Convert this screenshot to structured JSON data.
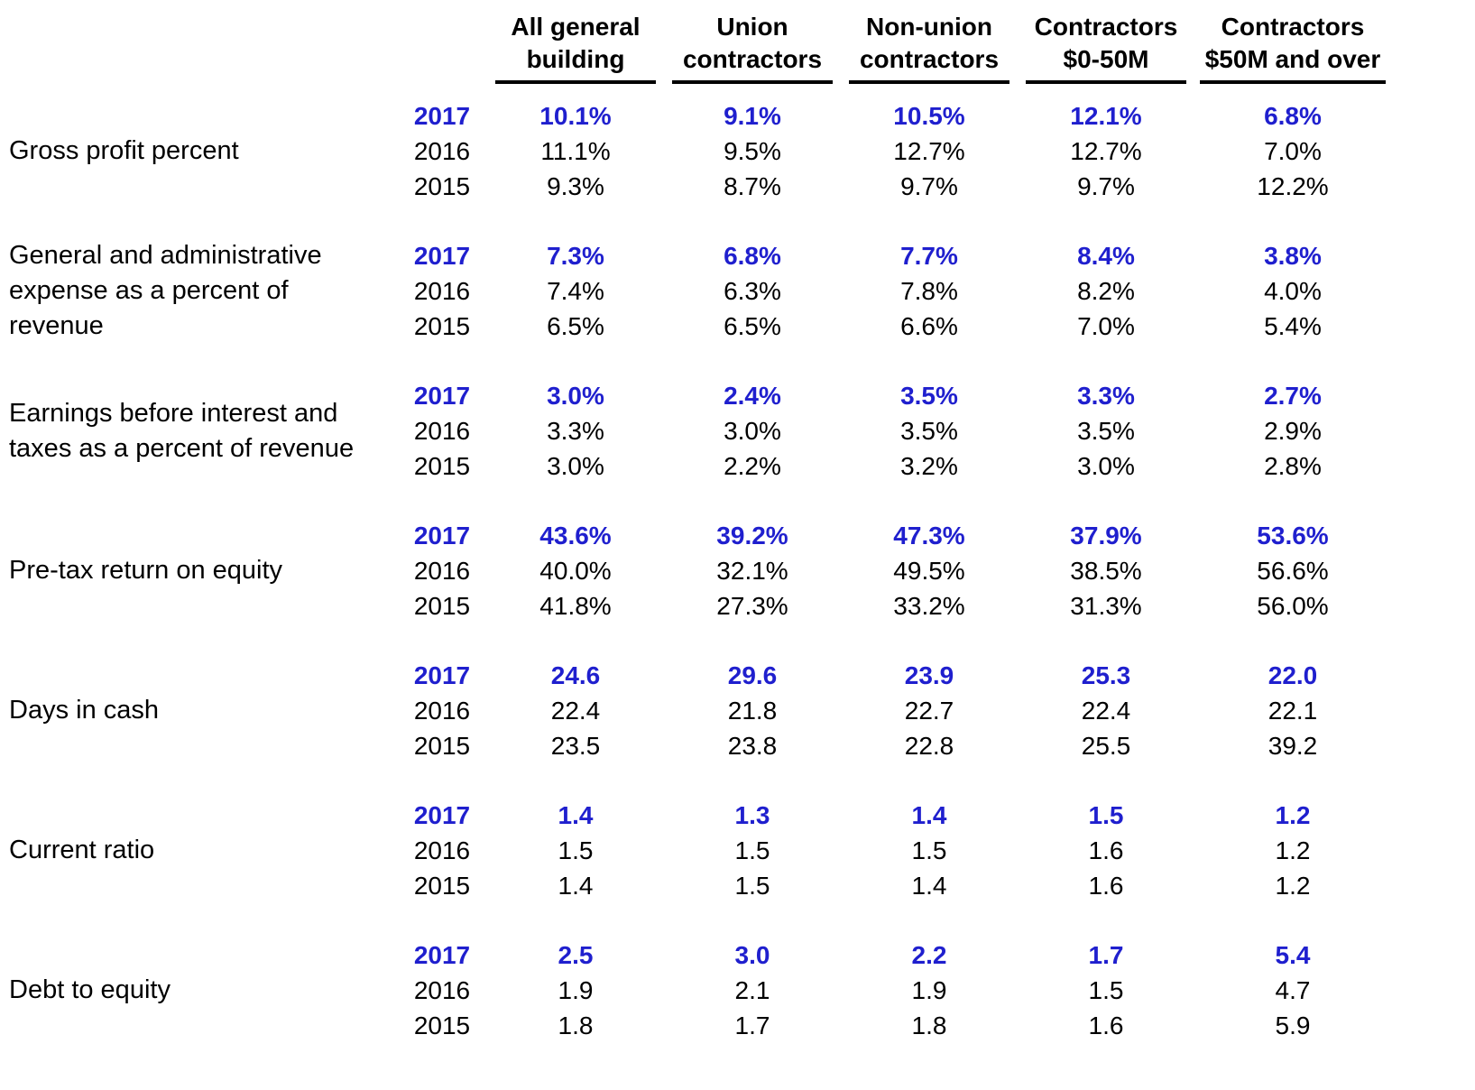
{
  "table": {
    "year_2017_color": "#1F1FCE",
    "text_color": "#000000",
    "columns": [
      "All general building",
      "Union contractors",
      "Non-union contractors",
      "Contractors $0-50M",
      "Contractors $50M and over"
    ],
    "years": [
      "2017",
      "2016",
      "2015"
    ],
    "groups": [
      {
        "label": "Gross profit percent",
        "rows": [
          [
            "10.1%",
            "9.1%",
            "10.5%",
            "12.1%",
            "6.8%"
          ],
          [
            "11.1%",
            "9.5%",
            "12.7%",
            "12.7%",
            "7.0%"
          ],
          [
            "9.3%",
            "8.7%",
            "9.7%",
            "9.7%",
            "12.2%"
          ]
        ]
      },
      {
        "label": "General and administrative expense as a percent of revenue",
        "rows": [
          [
            "7.3%",
            "6.8%",
            "7.7%",
            "8.4%",
            "3.8%"
          ],
          [
            "7.4%",
            "6.3%",
            "7.8%",
            "8.2%",
            "4.0%"
          ],
          [
            "6.5%",
            "6.5%",
            "6.6%",
            "7.0%",
            "5.4%"
          ]
        ]
      },
      {
        "label": "Earnings before interest and taxes as a percent of revenue",
        "rows": [
          [
            "3.0%",
            "2.4%",
            "3.5%",
            "3.3%",
            "2.7%"
          ],
          [
            "3.3%",
            "3.0%",
            "3.5%",
            "3.5%",
            "2.9%"
          ],
          [
            "3.0%",
            "2.2%",
            "3.2%",
            "3.0%",
            "2.8%"
          ]
        ]
      },
      {
        "label": "Pre-tax return on equity",
        "rows": [
          [
            "43.6%",
            "39.2%",
            "47.3%",
            "37.9%",
            "53.6%"
          ],
          [
            "40.0%",
            "32.1%",
            "49.5%",
            "38.5%",
            "56.6%"
          ],
          [
            "41.8%",
            "27.3%",
            "33.2%",
            "31.3%",
            "56.0%"
          ]
        ]
      },
      {
        "label": "Days in cash",
        "rows": [
          [
            "24.6",
            "29.6",
            "23.9",
            "25.3",
            "22.0"
          ],
          [
            "22.4",
            "21.8",
            "22.7",
            "22.4",
            "22.1"
          ],
          [
            "23.5",
            "23.8",
            "22.8",
            "25.5",
            "39.2"
          ]
        ]
      },
      {
        "label": "Current ratio",
        "rows": [
          [
            "1.4",
            "1.3",
            "1.4",
            "1.5",
            "1.2"
          ],
          [
            "1.5",
            "1.5",
            "1.5",
            "1.6",
            "1.2"
          ],
          [
            "1.4",
            "1.5",
            "1.4",
            "1.6",
            "1.2"
          ]
        ]
      },
      {
        "label": "Debt to equity",
        "rows": [
          [
            "2.5",
            "3.0",
            "2.2",
            "1.7",
            "5.4"
          ],
          [
            "1.9",
            "2.1",
            "1.9",
            "1.5",
            "4.7"
          ],
          [
            "1.8",
            "1.7",
            "1.8",
            "1.6",
            "5.9"
          ]
        ]
      }
    ]
  }
}
